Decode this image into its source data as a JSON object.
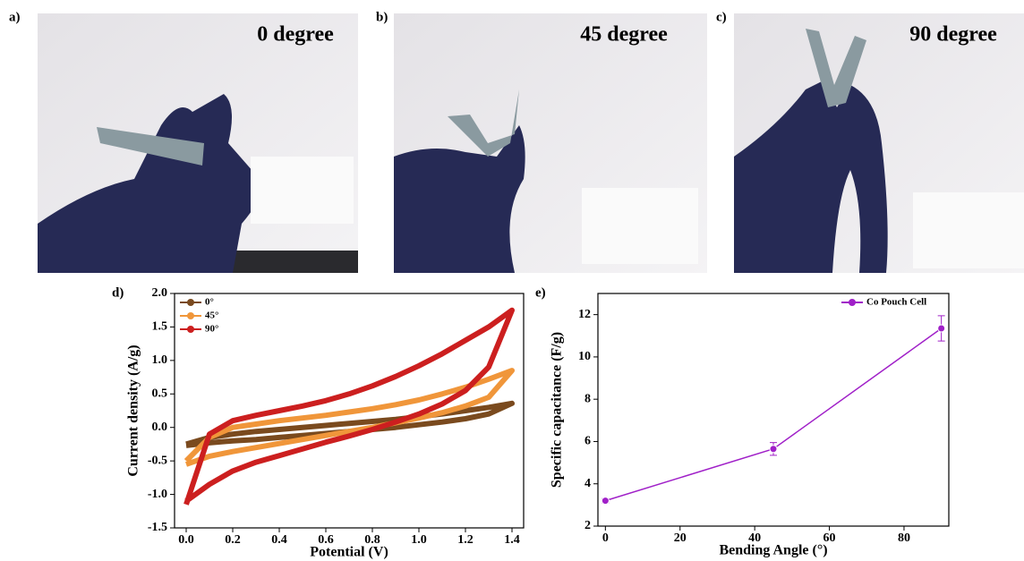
{
  "photos": [
    {
      "label": "a)",
      "caption": "0 degree"
    },
    {
      "label": "b)",
      "caption": "45 degree"
    },
    {
      "label": "c)",
      "caption": "90 degree"
    }
  ],
  "chart_data": [
    {
      "type": "line",
      "panel_label": "d)",
      "x_label": "Potential (V)",
      "y_label": "Current density (A/g)",
      "x": [
        0,
        0.1,
        0.2,
        0.3,
        0.4,
        0.5,
        0.6,
        0.7,
        0.8,
        0.9,
        1.0,
        1.1,
        1.2,
        1.3,
        1.4,
        1.3,
        1.2,
        1.1,
        1.0,
        0.9,
        0.8,
        0.7,
        0.6,
        0.5,
        0.4,
        0.3,
        0.2,
        0.1,
        0
      ],
      "series": [
        {
          "name": "0°",
          "color": "#7a4a1e",
          "values": [
            -0.25,
            -0.15,
            -0.1,
            -0.06,
            -0.03,
            0,
            0.03,
            0.06,
            0.09,
            0.12,
            0.16,
            0.2,
            0.25,
            0.3,
            0.36,
            0.2,
            0.13,
            0.08,
            0.04,
            0.0,
            -0.03,
            -0.06,
            -0.09,
            -0.12,
            -0.15,
            -0.18,
            -0.2,
            -0.23,
            -0.27
          ]
        },
        {
          "name": "45°",
          "color": "#f0963a",
          "values": [
            -0.5,
            -0.15,
            0.0,
            0.05,
            0.1,
            0.14,
            0.18,
            0.23,
            0.28,
            0.34,
            0.41,
            0.5,
            0.6,
            0.72,
            0.85,
            0.45,
            0.32,
            0.22,
            0.14,
            0.07,
            0.0,
            -0.06,
            -0.12,
            -0.18,
            -0.24,
            -0.3,
            -0.36,
            -0.43,
            -0.55
          ]
        },
        {
          "name": "90°",
          "color": "#cc1f1f",
          "values": [
            -1.15,
            -0.1,
            0.1,
            0.18,
            0.25,
            0.32,
            0.4,
            0.5,
            0.62,
            0.76,
            0.92,
            1.1,
            1.3,
            1.5,
            1.75,
            0.9,
            0.55,
            0.35,
            0.2,
            0.08,
            -0.03,
            -0.13,
            -0.22,
            -0.32,
            -0.42,
            -0.52,
            -0.65,
            -0.85,
            -1.1
          ]
        }
      ],
      "xlim": [
        -0.05,
        1.45
      ],
      "xticks": [
        {
          "value": 0,
          "label": "0.0"
        },
        0.2,
        0.4,
        0.6,
        0.8,
        {
          "value": 1,
          "label": "1.0"
        },
        1.2,
        1.4
      ],
      "ylim": [
        -1.5,
        2.0
      ],
      "yticks": [
        -1.5,
        {
          "value": -1,
          "label": "-1.0"
        },
        -0.5,
        {
          "value": 0,
          "label": "0.0"
        },
        0.5,
        {
          "value": 1,
          "label": "1.0"
        },
        1.5,
        {
          "value": 2,
          "label": "2.0"
        }
      ],
      "legend": "upper left",
      "line_width": 6,
      "markers": false
    },
    {
      "type": "line",
      "panel_label": "e)",
      "x_label": "Bending Angle (°)",
      "y_label": "Specific capacitance (F/g)",
      "x": [
        0,
        45,
        90
      ],
      "series": [
        {
          "name": "Co Pouch Cell",
          "color": "#a020c8",
          "values": [
            3.2,
            5.65,
            11.35
          ],
          "errors": [
            0.1,
            0.3,
            0.6
          ]
        }
      ],
      "xlim": [
        -2,
        92
      ],
      "xticks": [
        0,
        20,
        40,
        60,
        80
      ],
      "ylim": [
        2,
        13
      ],
      "yticks": [
        2,
        4,
        6,
        8,
        10,
        12
      ],
      "legend": "upper right",
      "line_width": 1.5,
      "markers": true
    }
  ]
}
